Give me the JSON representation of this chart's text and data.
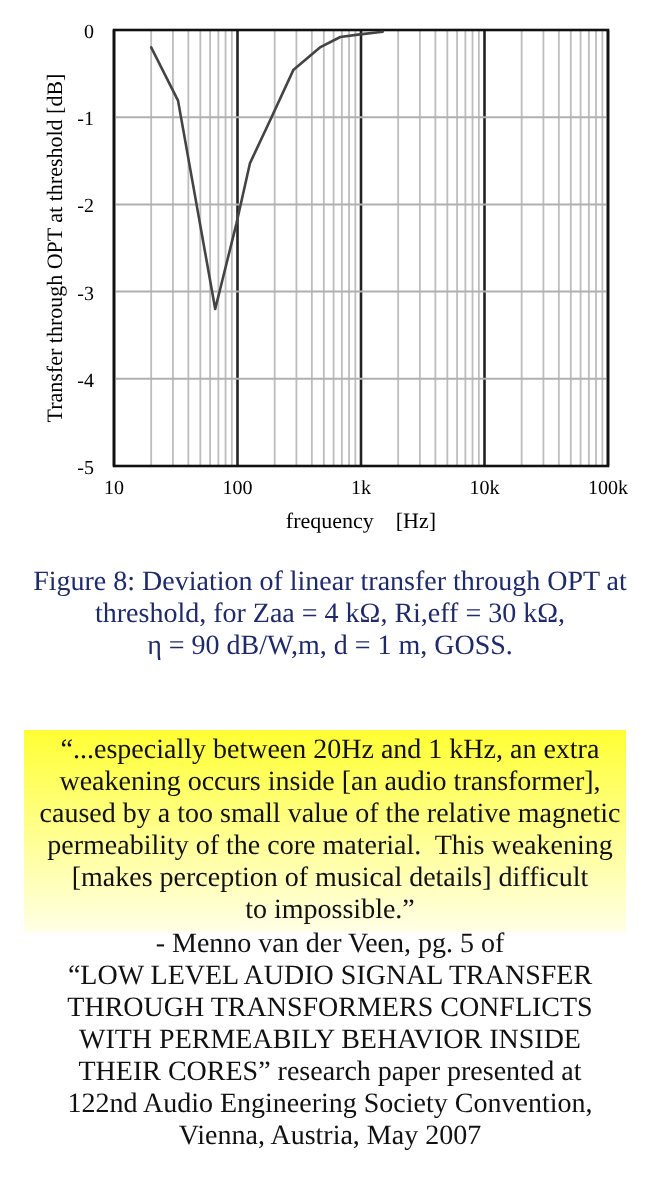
{
  "chart_data": {
    "type": "line",
    "xlabel": "frequency    [Hz]",
    "ylabel": "Transfer through OPT at threshold  [dB]",
    "log": "x",
    "grid": true,
    "marker": "none",
    "line_style": "solid",
    "x": [
      20,
      33,
      66,
      98,
      126,
      183,
      283,
      465,
      680,
      980,
      1500
    ],
    "series": [
      {
        "color": "#444444",
        "values": [
          -0.2,
          -0.81,
          -3.2,
          -2.22,
          -1.53,
          -1.04,
          -0.46,
          -0.2,
          -0.08,
          -0.05,
          -0.02
        ]
      }
    ],
    "xlim": [
      10,
      100000
    ],
    "ylim": [
      -5,
      0
    ],
    "xticks": [
      10,
      {
        "value": 20,
        "label": null
      },
      {
        "value": 30,
        "label": null
      },
      {
        "value": 40,
        "label": null
      },
      {
        "value": 50,
        "label": null
      },
      {
        "value": 60,
        "label": null
      },
      {
        "value": 70,
        "label": null
      },
      {
        "value": 80,
        "label": null
      },
      {
        "value": 90,
        "label": null
      },
      100,
      {
        "value": 200,
        "label": null
      },
      {
        "value": 300,
        "label": null
      },
      {
        "value": 400,
        "label": null
      },
      {
        "value": 500,
        "label": null
      },
      {
        "value": 600,
        "label": null
      },
      {
        "value": 700,
        "label": null
      },
      {
        "value": 800,
        "label": null
      },
      {
        "value": 900,
        "label": null
      },
      {
        "value": 1000,
        "label": "1k"
      },
      {
        "value": 2000,
        "label": null
      },
      {
        "value": 3000,
        "label": null
      },
      {
        "value": 4000,
        "label": null
      },
      {
        "value": 5000,
        "label": null
      },
      {
        "value": 6000,
        "label": null
      },
      {
        "value": 7000,
        "label": null
      },
      {
        "value": 8000,
        "label": null
      },
      {
        "value": 9000,
        "label": null
      },
      {
        "value": 10000,
        "label": "10k"
      },
      {
        "value": 20000,
        "label": null
      },
      {
        "value": 30000,
        "label": null
      },
      {
        "value": 40000,
        "label": null
      },
      {
        "value": 50000,
        "label": null
      },
      {
        "value": 60000,
        "label": null
      },
      {
        "value": 70000,
        "label": null
      },
      {
        "value": 80000,
        "label": null
      },
      {
        "value": 90000,
        "label": null
      },
      {
        "value": 100000,
        "label": "100k"
      }
    ],
    "yticks": [
      -5,
      -4,
      -3,
      -2,
      -1,
      0
    ],
    "annotations": [
      "Figure 8: Deviation of linear transfer through OPT at\nthreshold, for Zaa = 4 kΩ, Ri,eff = 30 kΩ,\nη = 90 dB/W,m, d = 1 m, GOSS.",
      "“...especially between 20Hz and 1 kHz, an extra\nweakening occurs inside [an audio transformer],\ncaused by a too small value of the relative magnetic\npermeability of the core material.  This weakening\n[makes perception of musical details] difficult\nto impossible.”",
      "- Menno van der Veen, pg. 5 of\n“LOW LEVEL AUDIO SIGNAL TRANSFER\nTHROUGH TRANSFORMERS CONFLICTS\nWITH PERMEABILY BEHAVIOR INSIDE\nTHEIR CORES” research paper presented at\n122nd Audio Engineering Society Convention,\nVienna, Austria, May 2007"
    ]
  }
}
